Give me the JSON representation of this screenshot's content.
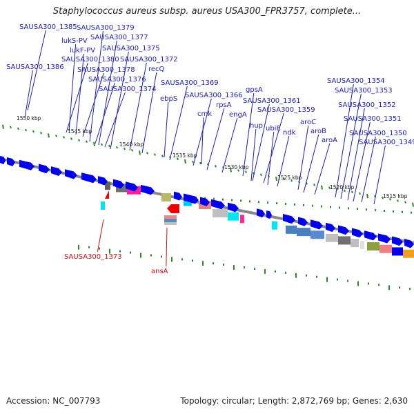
{
  "title": "Staphylococcus aureus subsp. aureus USA300_FPR3757, complete...",
  "footer": {
    "accession": "Accession: NC_007793",
    "summary": "Topology: circular; Length: 2,872,769 bp; Genes: 2,630"
  },
  "colors": {
    "forward_gene": "#0000ee",
    "reverse_gene": "#ee0000",
    "label_forward": "#1c1cb4",
    "label_reverse": "#cc1010",
    "backbone": "#888888",
    "tick": "#2a8a2a"
  },
  "kbp_labels": [
    "1550 kbp",
    "1545 kbp",
    "1540 kbp",
    "1535 kbp",
    "1530 kbp",
    "1525 kbp",
    "1520 kbp",
    "1515 kbp"
  ],
  "gene_labels_forward": [
    "SAUSA300_1385",
    "SAUSA300_1379",
    "SAUSA300_1377",
    "lukS-PV",
    "lukF-PV",
    "SAUSA300_1375",
    "SAUSA300_1386",
    "SAUSA300_1380",
    "SAUSA300_1372",
    "recQ",
    "SAUSA300_1378",
    "SAUSA300_1376",
    "SAUSA300_1374",
    "SAUSA300_1369",
    "ebpS",
    "SAUSA300_1366",
    "rpsA",
    "cmk",
    "engA",
    "gpsA",
    "SAUSA300_1361",
    "SAUSA300_1359",
    "hup",
    "ubiE",
    "ndk",
    "aroC",
    "aroB",
    "aroA",
    "SAUSA300_1354",
    "SAUSA300_1353",
    "SAUSA300_1352",
    "SAUSA300_1351",
    "SAUSA300_1350",
    "SAUSA300_1349"
  ],
  "gene_labels_reverse": [
    "SAUSA300_1373",
    "ansA"
  ]
}
